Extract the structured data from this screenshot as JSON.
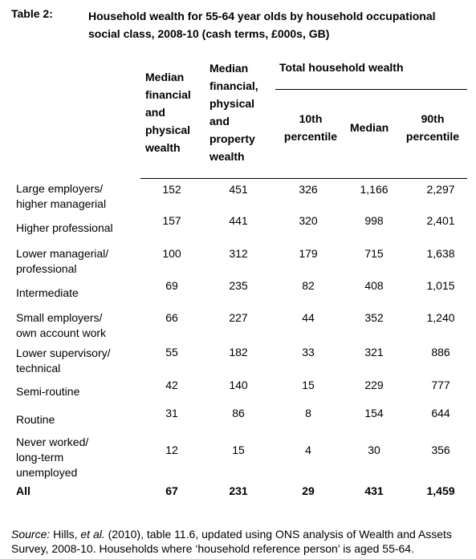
{
  "table_label": "Table 2:",
  "title": "Household wealth for 55-64 year olds by household occupational social class, 2008-10 (cash terms, £000s, GB)",
  "table": {
    "headers": [
      "Median financial and physical wealth",
      "Median financial, physical and property wealth"
    ],
    "group_header": "Total household wealth",
    "sub_headers": [
      "10th percentile",
      "Median",
      "90th percentile"
    ],
    "rows": [
      {
        "label": [
          "Large employers/",
          "higher managerial"
        ],
        "values": [
          "152",
          "451",
          "326",
          "1,166",
          "2,297"
        ]
      },
      {
        "label": [
          "Higher professional"
        ],
        "values": [
          "157",
          "441",
          "320",
          "998",
          "2,401"
        ]
      },
      {
        "label": [
          "Lower managerial/",
          "professional"
        ],
        "values": [
          "100",
          "312",
          "179",
          "715",
          "1,638"
        ]
      },
      {
        "label": [
          "Intermediate"
        ],
        "values": [
          "69",
          "235",
          "82",
          "408",
          "1,015"
        ]
      },
      {
        "label": [
          "Small employers/",
          "own account work"
        ],
        "values": [
          "66",
          "227",
          "44",
          "352",
          "1,240"
        ]
      },
      {
        "label": [
          "Lower supervisory/",
          "technical"
        ],
        "values": [
          "55",
          "182",
          "33",
          "321",
          "886"
        ]
      },
      {
        "label": [
          "Semi-routine"
        ],
        "values": [
          "42",
          "140",
          "15",
          "229",
          "777"
        ]
      },
      {
        "label": [
          "Routine"
        ],
        "values": [
          "31",
          "86",
          "8",
          "154",
          "644"
        ]
      },
      {
        "label": [
          "Never worked/",
          "long-term",
          "unemployed"
        ],
        "values": [
          "12",
          "15",
          "4",
          "30",
          "356"
        ]
      },
      {
        "label": [
          "All"
        ],
        "values": [
          "67",
          "231",
          "29",
          "431",
          "1,459"
        ]
      }
    ]
  },
  "source": {
    "prefix": "Source:",
    "author": " Hills, ",
    "etal": "et al.",
    "text": " (2010), table 11.6, updated using ONS analysis of Wealth and Assets Survey, 2008-10.  Households where ‘household reference person’ is aged 55-64."
  }
}
